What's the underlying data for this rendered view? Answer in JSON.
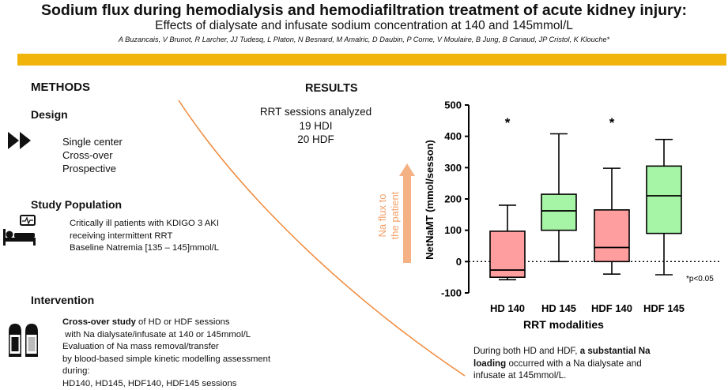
{
  "header": {
    "title": "Sodium flux during hemodialysis and hemodiafiltration treatment of acute kidney injury:",
    "subtitle": "Effects of dialysate and infusate sodium concentration at 140 and 145mmol/L",
    "authors": "A Buzancais, V Brunot, R Larcher, JJ Tudesq, L Platon, N Besnard, M Amalric, D Daubin, P Corne, V Moulaire, B Jung, B Canaud, JP Cristol, K Klouche*",
    "accent_color": "#f0b40a"
  },
  "methods": {
    "heading": "METHODS",
    "design": {
      "heading": "Design",
      "icon": "fast-forward-icon",
      "lines": [
        "Single center",
        "Cross-over",
        "Prospective"
      ]
    },
    "population": {
      "heading": "Study Population",
      "icon": "hospital-bed-monitor-icon",
      "lines": [
        "Critically ill patients with KDIGO 3 AKI",
        "receiving intermittent RRT",
        "Baseline Natremia [135 – 145]mmol/L"
      ]
    },
    "intervention": {
      "heading": "Intervention",
      "icon": "salt-pepper-shakers-icon",
      "bold_lead": "Cross-over study",
      "line1_rest": " of HD or HDF sessions",
      "lines": [
        " with Na dialysate/infusate at 140 or 145mmol/L",
        "Evaluation of Na mass removal/transfer",
        "by blood-based simple kinetic modelling assessment during:",
        "HD140, HD145, HDF140, HDF145 sessions"
      ]
    }
  },
  "results": {
    "heading": "RESULTS",
    "lines": [
      "RRT sessions analyzed",
      "19 HDI",
      "20 HDF"
    ],
    "flux_label_1": "Na flux to",
    "flux_label_2": "the patient",
    "flux_color": "#f4b183",
    "conclusion_pre": "During both HD and HDF, ",
    "conclusion_bold_1": "a substantial Na",
    "conclusion_bold_2": "loading",
    "conclusion_post_1": " occurred with a Na dialysate and",
    "conclusion_post_2": "infusate at 145mmol/L."
  },
  "chart_data": {
    "type": "box",
    "title": "",
    "xlabel": "RRT modalities",
    "ylabel": "NetNaMT (mmol/sesson)",
    "ylim": [
      -100,
      500
    ],
    "yticks": [
      "-100",
      "0",
      "100",
      "200",
      "300",
      "400",
      "500"
    ],
    "reference_line": 0,
    "footnote": "*p<0.05",
    "categories": [
      "HD 140",
      "HD 145",
      "HDF 140",
      "HDF 145"
    ],
    "boxes": [
      {
        "label": "HD 140",
        "min": -58,
        "q1": -50,
        "median": -27,
        "q3": 97,
        "max": 180,
        "color": "#ff9e9e",
        "marker": "*"
      },
      {
        "label": "HD 145",
        "min": 0,
        "q1": 100,
        "median": 162,
        "q3": 215,
        "max": 408,
        "color": "#a6f5a6",
        "marker": ""
      },
      {
        "label": "HDF 140",
        "min": -40,
        "q1": 0,
        "median": 45,
        "q3": 165,
        "max": 298,
        "color": "#ff9e9e",
        "marker": "*"
      },
      {
        "label": "HDF 145",
        "min": -42,
        "q1": 90,
        "median": 210,
        "q3": 305,
        "max": 390,
        "color": "#a6f5a6",
        "marker": ""
      }
    ]
  }
}
